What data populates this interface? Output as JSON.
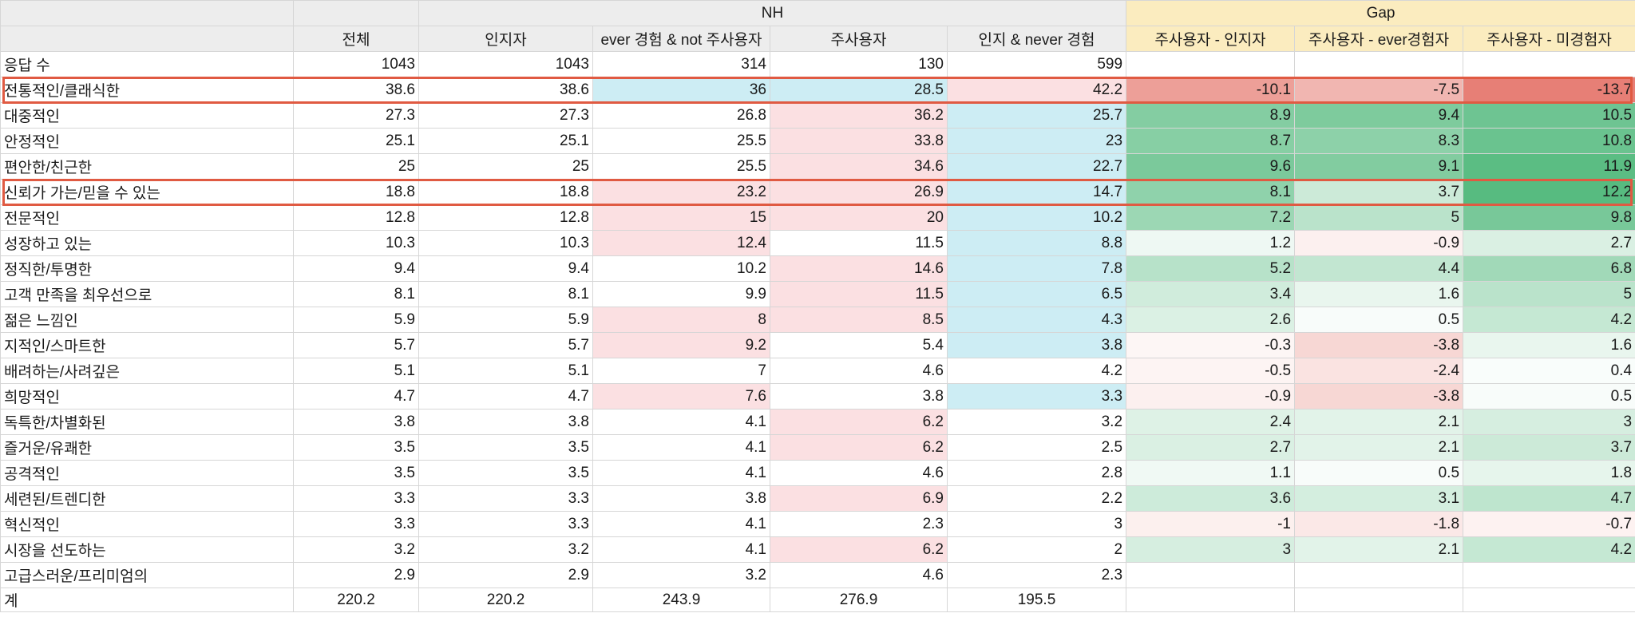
{
  "header": {
    "nh_group": "NH",
    "gap_group": "Gap",
    "columns": [
      "전체",
      "인지자",
      "ever 경험 & not 주사용자",
      "주사용자",
      "인지 & never 경험",
      "주사용자 - 인지자",
      "주사용자 - ever경험자",
      "주사용자 - 미경험자"
    ]
  },
  "responses": {
    "label": "응답 수",
    "values": [
      "1043",
      "1043",
      "314",
      "130",
      "599"
    ]
  },
  "rows": [
    {
      "label": "전통적인/클래식한",
      "v": [
        "38.6",
        "38.6",
        "36",
        "28.5",
        "42.2"
      ],
      "g": [
        "-10.1",
        "-7.5",
        "-13.7"
      ]
    },
    {
      "label": "대중적인",
      "v": [
        "27.3",
        "27.3",
        "26.8",
        "36.2",
        "25.7"
      ],
      "g": [
        "8.9",
        "9.4",
        "10.5"
      ]
    },
    {
      "label": "안정적인",
      "v": [
        "25.1",
        "25.1",
        "25.5",
        "33.8",
        "23"
      ],
      "g": [
        "8.7",
        "8.3",
        "10.8"
      ]
    },
    {
      "label": "편안한/친근한",
      "v": [
        "25",
        "25",
        "25.5",
        "34.6",
        "22.7"
      ],
      "g": [
        "9.6",
        "9.1",
        "11.9"
      ]
    },
    {
      "label": "신뢰가 가는/믿을 수 있는",
      "v": [
        "18.8",
        "18.8",
        "23.2",
        "26.9",
        "14.7"
      ],
      "g": [
        "8.1",
        "3.7",
        "12.2"
      ]
    },
    {
      "label": "전문적인",
      "v": [
        "12.8",
        "12.8",
        "15",
        "20",
        "10.2"
      ],
      "g": [
        "7.2",
        "5",
        "9.8"
      ]
    },
    {
      "label": "성장하고 있는",
      "v": [
        "10.3",
        "10.3",
        "12.4",
        "11.5",
        "8.8"
      ],
      "g": [
        "1.2",
        "-0.9",
        "2.7"
      ]
    },
    {
      "label": "정직한/투명한",
      "v": [
        "9.4",
        "9.4",
        "10.2",
        "14.6",
        "7.8"
      ],
      "g": [
        "5.2",
        "4.4",
        "6.8"
      ]
    },
    {
      "label": "고객 만족을 최우선으로",
      "v": [
        "8.1",
        "8.1",
        "9.9",
        "11.5",
        "6.5"
      ],
      "g": [
        "3.4",
        "1.6",
        "5"
      ]
    },
    {
      "label": "젊은 느낌인",
      "v": [
        "5.9",
        "5.9",
        "8",
        "8.5",
        "4.3"
      ],
      "g": [
        "2.6",
        "0.5",
        "4.2"
      ]
    },
    {
      "label": "지적인/스마트한",
      "v": [
        "5.7",
        "5.7",
        "9.2",
        "5.4",
        "3.8"
      ],
      "g": [
        "-0.3",
        "-3.8",
        "1.6"
      ]
    },
    {
      "label": "배려하는/사려깊은",
      "v": [
        "5.1",
        "5.1",
        "7",
        "4.6",
        "4.2"
      ],
      "g": [
        "-0.5",
        "-2.4",
        "0.4"
      ]
    },
    {
      "label": "희망적인",
      "v": [
        "4.7",
        "4.7",
        "7.6",
        "3.8",
        "3.3"
      ],
      "g": [
        "-0.9",
        "-3.8",
        "0.5"
      ]
    },
    {
      "label": "독특한/차별화된",
      "v": [
        "3.8",
        "3.8",
        "4.1",
        "6.2",
        "3.2"
      ],
      "g": [
        "2.4",
        "2.1",
        "3"
      ]
    },
    {
      "label": "즐거운/유쾌한",
      "v": [
        "3.5",
        "3.5",
        "4.1",
        "6.2",
        "2.5"
      ],
      "g": [
        "2.7",
        "2.1",
        "3.7"
      ]
    },
    {
      "label": "공격적인",
      "v": [
        "3.5",
        "3.5",
        "4.1",
        "4.6",
        "2.8"
      ],
      "g": [
        "1.1",
        "0.5",
        "1.8"
      ]
    },
    {
      "label": "세련된/트렌디한",
      "v": [
        "3.3",
        "3.3",
        "3.8",
        "6.9",
        "2.2"
      ],
      "g": [
        "3.6",
        "3.1",
        "4.7"
      ]
    },
    {
      "label": "혁신적인",
      "v": [
        "3.3",
        "3.3",
        "4.1",
        "2.3",
        "3"
      ],
      "g": [
        "-1",
        "-1.8",
        "-0.7"
      ]
    },
    {
      "label": "시장을 선도하는",
      "v": [
        "3.2",
        "3.2",
        "4.1",
        "6.2",
        "2"
      ],
      "g": [
        "3",
        "2.1",
        "4.2"
      ]
    },
    {
      "label": "고급스러운/프리미엄의",
      "v": [
        "2.9",
        "2.9",
        "3.2",
        "4.6",
        "2.3"
      ],
      "g": [
        "",
        "",
        ""
      ]
    }
  ],
  "total": {
    "label": "계",
    "values": [
      "220.2",
      "220.2",
      "243.9",
      "276.9",
      "195.5"
    ]
  },
  "colors": {
    "highlight_border": "#e05a42",
    "cell_pink": "#fbe0e2",
    "cell_blue": "#cdedf4",
    "header_grey": "#ededed",
    "header_gold": "#fbecbf",
    "gap_positive_max": "#57bb80",
    "gap_negative_max": "#e67b72"
  },
  "highlighted_rows": [
    "전통적인/클래식한",
    "신뢰가 가는/믿을 수 있는"
  ]
}
